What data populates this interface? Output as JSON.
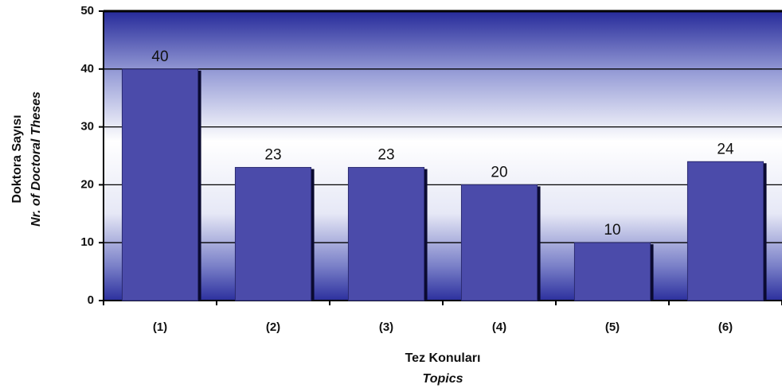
{
  "chart_data": {
    "type": "bar",
    "y_axis_label": "Doktora Sayısı",
    "y_axis_label_en": "Nr. of Doctoral Theses",
    "x_axis_label": "Tez Konuları",
    "x_axis_label_en": "Topics",
    "categories": [
      "(1)",
      "(2)",
      "(3)",
      "(4)",
      "(5)",
      "(6)"
    ],
    "values": [
      40,
      23,
      23,
      20,
      10,
      24
    ],
    "color": "#4b4baa",
    "ylim": [
      0,
      50
    ],
    "yticks": [
      0,
      10,
      20,
      30,
      40,
      50
    ],
    "grid": true
  }
}
